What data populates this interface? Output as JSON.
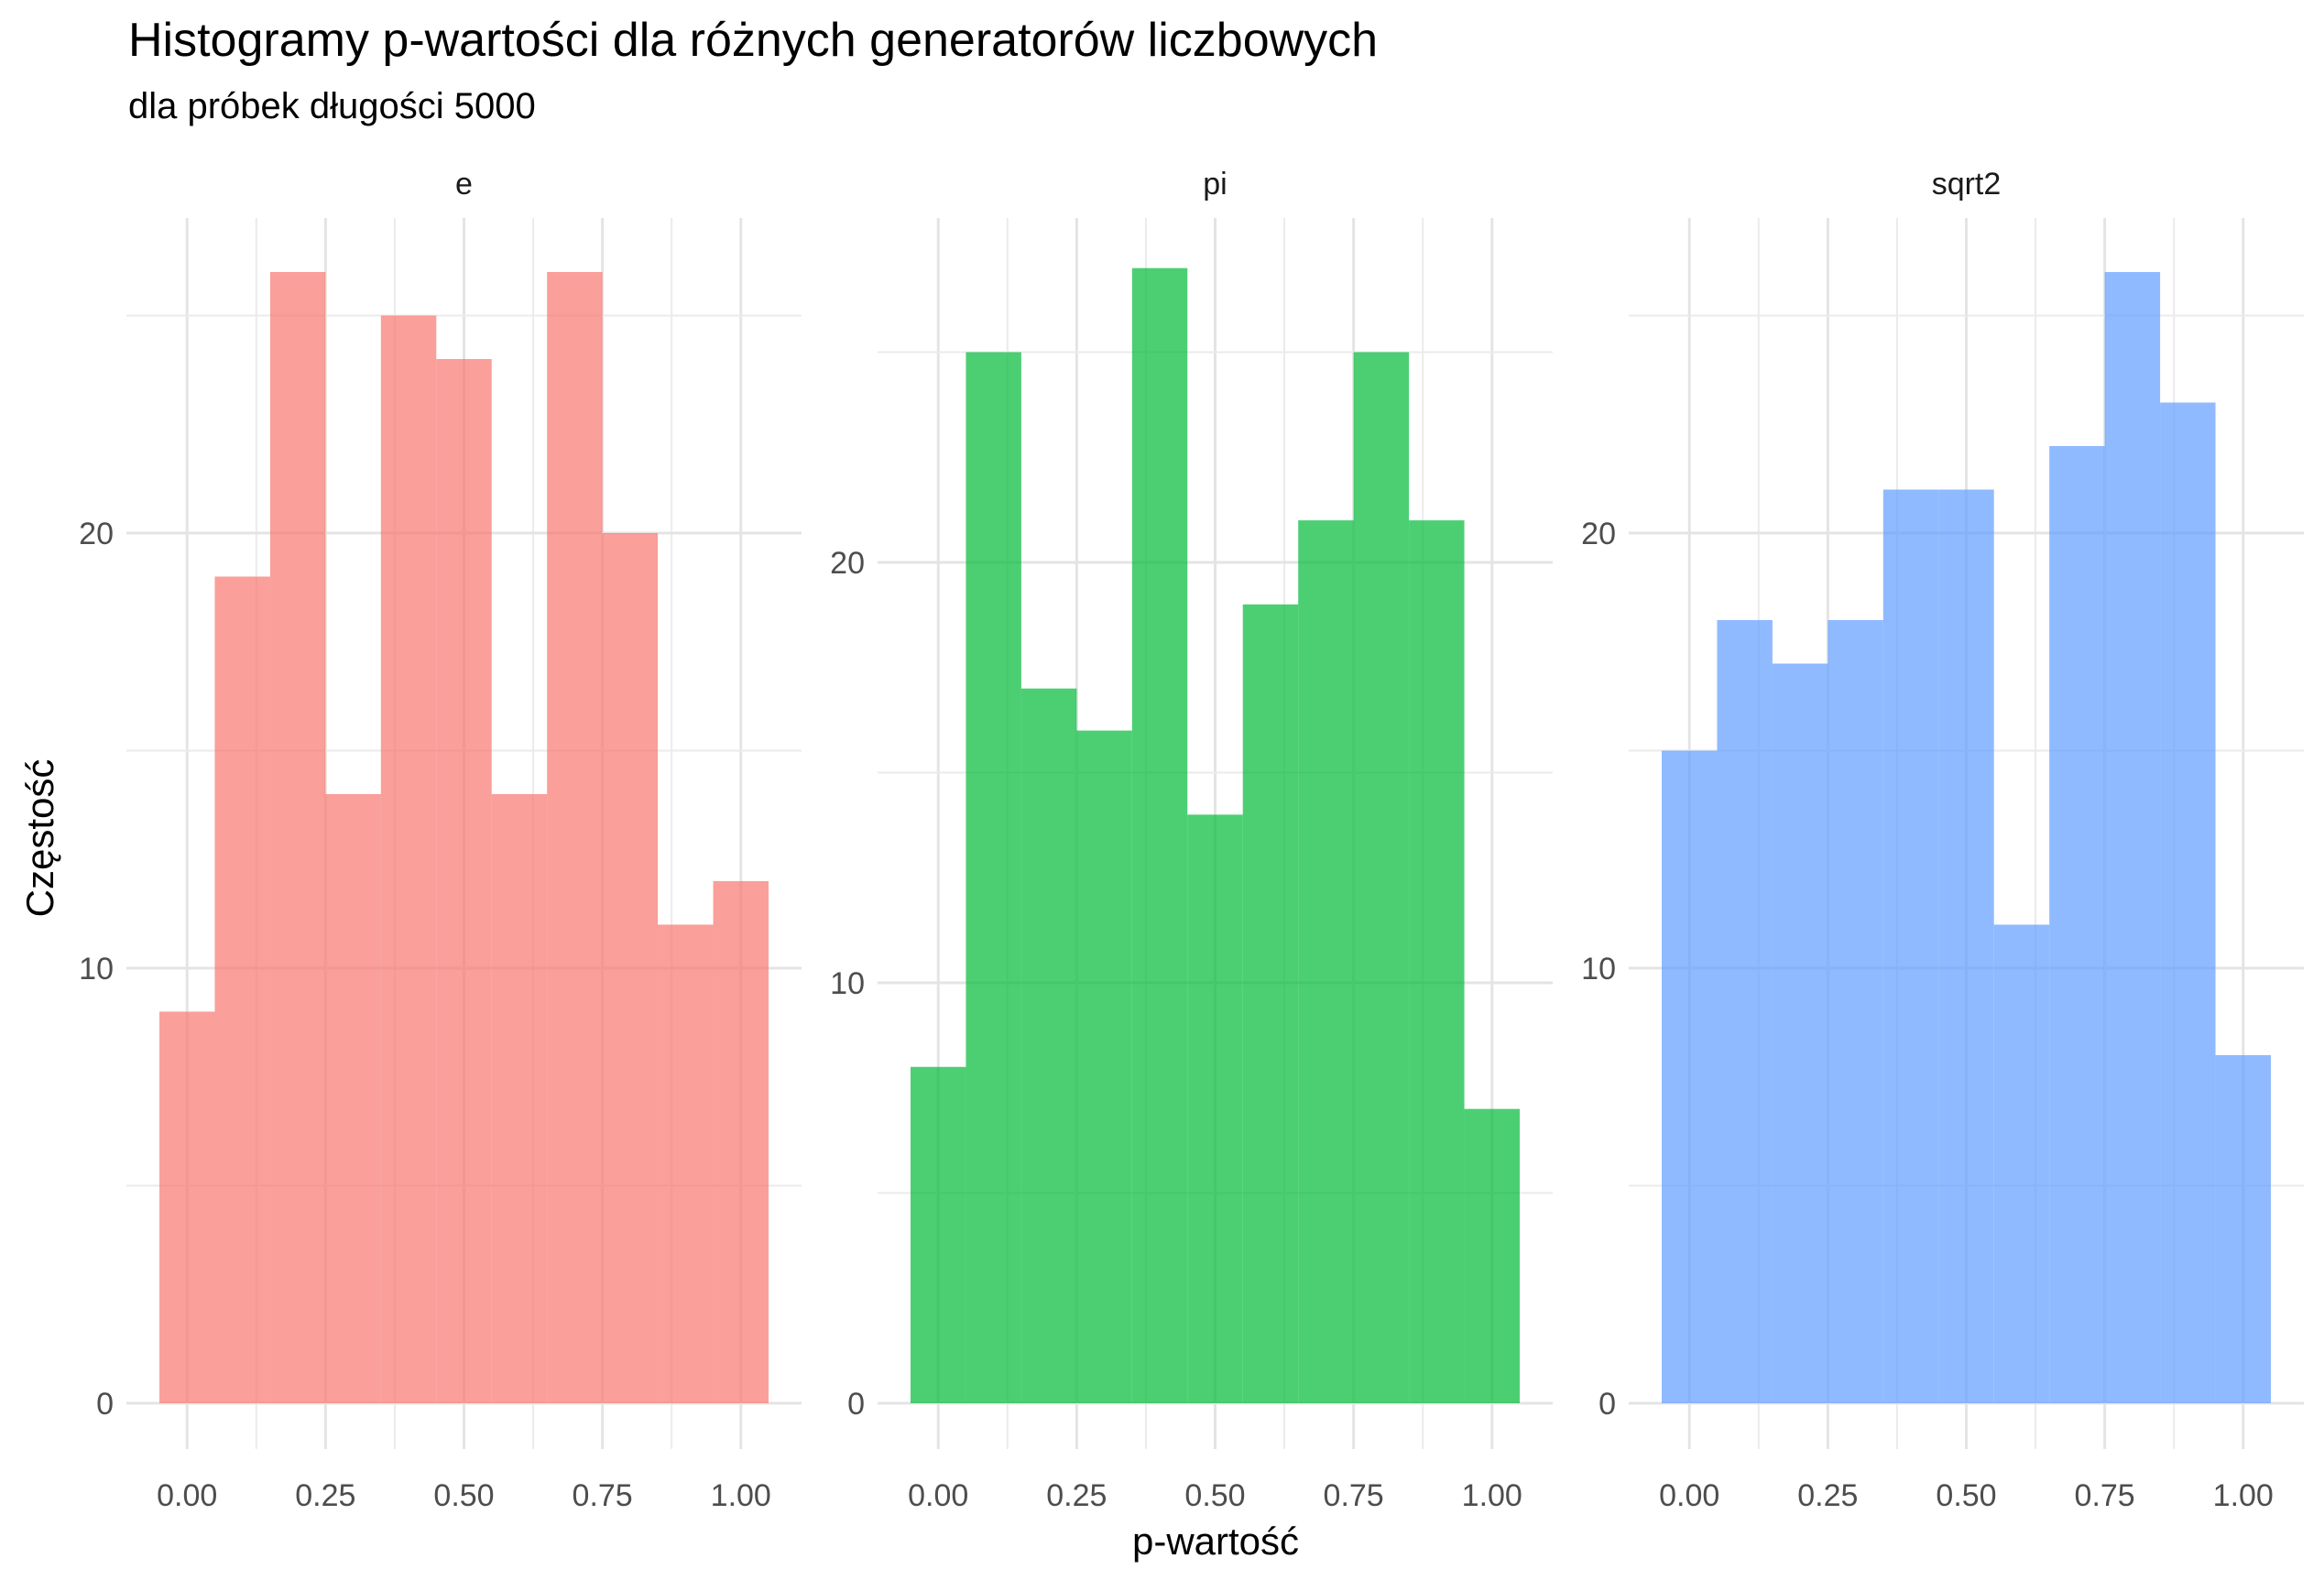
{
  "chart_data": {
    "type": "bar",
    "title": "Histogramy p-wartości dla różnych generatorów liczbowych",
    "subtitle": "dla próbek długości 5000",
    "xlabel": "p-wartość",
    "ylabel": "Częstość",
    "x_ticks": [
      "0.00",
      "0.25",
      "0.50",
      "0.75",
      "1.00"
    ],
    "bin_width": 0.1,
    "bin_centers": [
      0.0,
      0.1,
      0.2,
      0.3,
      0.4,
      0.5,
      0.6,
      0.7,
      0.8,
      0.9,
      1.0
    ],
    "xlim": [
      -0.05,
      1.05
    ],
    "grid": true,
    "panels": [
      {
        "label": "e",
        "color": "#F8766D",
        "y_ticks": [
          0,
          10,
          20
        ],
        "ylim": [
          0,
          26
        ],
        "values": [
          9,
          19,
          26,
          14,
          25,
          24,
          14,
          26,
          20,
          11,
          12
        ]
      },
      {
        "label": "pi",
        "color": "#00BA38",
        "y_ticks": [
          0,
          10,
          20
        ],
        "ylim": [
          0,
          27
        ],
        "values": [
          8,
          25,
          17,
          16,
          27,
          14,
          19,
          21,
          25,
          21,
          7
        ]
      },
      {
        "label": "sqrt2",
        "color": "#619CFF",
        "y_ticks": [
          0,
          10,
          20
        ],
        "ylim": [
          0,
          26
        ],
        "values": [
          15,
          18,
          17,
          18,
          21,
          21,
          11,
          22,
          26,
          23,
          8
        ]
      }
    ]
  }
}
